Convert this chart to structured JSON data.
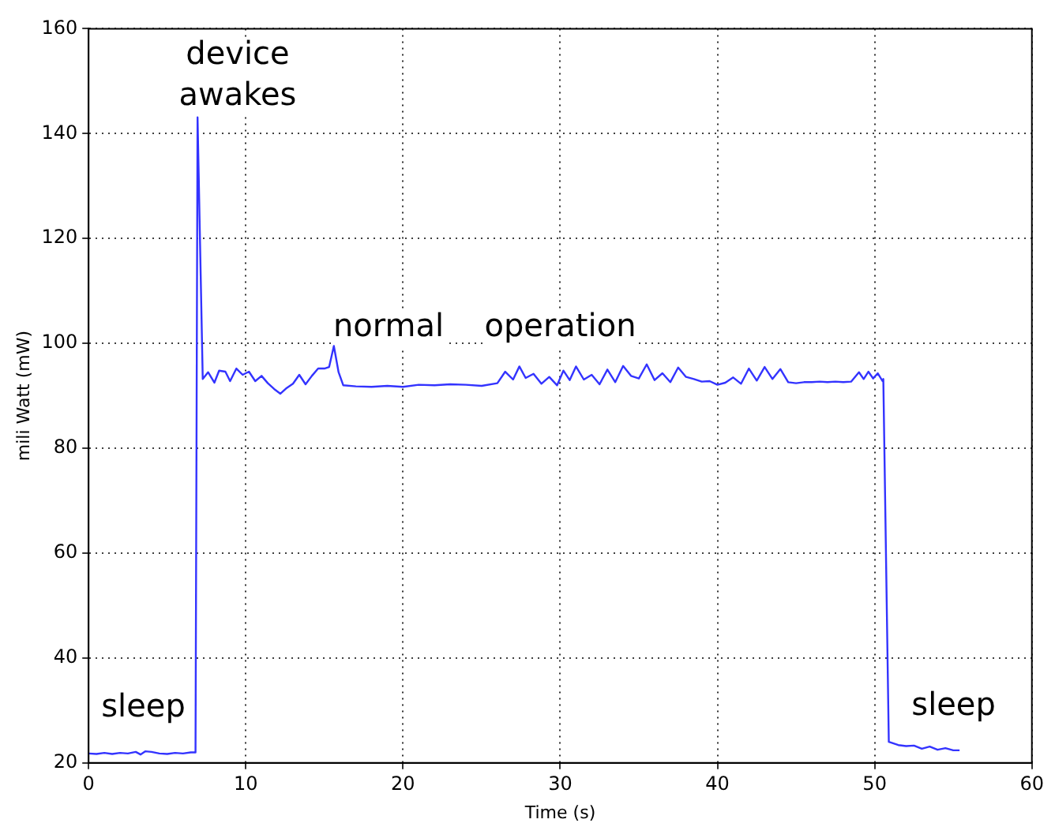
{
  "chart_data": {
    "type": "line",
    "xlabel": "Time (s)",
    "ylabel": "mili Watt (mW)",
    "xlim": [
      0,
      60
    ],
    "xticks": [
      0,
      10,
      20,
      30,
      40,
      50,
      60
    ],
    "ylim": [
      20,
      160
    ],
    "yticks": [
      20,
      40,
      60,
      80,
      100,
      120,
      140,
      160
    ],
    "grid": true,
    "marker": "none",
    "line_style": "solid",
    "legend": false,
    "series": [
      {
        "color": "#3333ff",
        "x": [
          0,
          0.5,
          1,
          1.5,
          2,
          2.5,
          3,
          3.3,
          3.6,
          4,
          4.5,
          5,
          5.5,
          6,
          6.5,
          6.8,
          6.93,
          7.26,
          7.6,
          8,
          8.3,
          8.7,
          9,
          9.4,
          9.8,
          10.2,
          10.6,
          11,
          11.4,
          11.8,
          12.2,
          12.6,
          13,
          13.4,
          13.8,
          14.2,
          14.6,
          15,
          15.3,
          15.6,
          15.9,
          16.2,
          17,
          18,
          19,
          20,
          21,
          22,
          23,
          24,
          25,
          26,
          26.5,
          27,
          27.4,
          27.8,
          28.3,
          28.8,
          29.3,
          29.8,
          30.2,
          30.6,
          31,
          31.5,
          32,
          32.5,
          33,
          33.5,
          34,
          34.5,
          35,
          35.5,
          36,
          36.5,
          37,
          37.5,
          38,
          38.5,
          39,
          39.5,
          40,
          40.5,
          41,
          41.5,
          42,
          42.5,
          43,
          43.5,
          44,
          44.5,
          45,
          45.5,
          46,
          46.5,
          47,
          47.5,
          48,
          48.5,
          49,
          49.3,
          49.6,
          49.9,
          50.2,
          50.5,
          50.55,
          50.9,
          51.5,
          52,
          52.5,
          53,
          53.5,
          54,
          54.5,
          55,
          55.4
        ],
        "values": [
          21.8,
          21.7,
          21.9,
          21.7,
          21.9,
          21.8,
          22.1,
          21.6,
          22.2,
          22.1,
          21.8,
          21.7,
          21.9,
          21.8,
          22.0,
          22.0,
          143.1,
          93.2,
          94.5,
          92.5,
          94.8,
          94.6,
          92.8,
          95.2,
          94.0,
          94.6,
          92.8,
          93.8,
          92.4,
          91.3,
          90.4,
          91.5,
          92.3,
          94.0,
          92.2,
          93.8,
          95.2,
          95.2,
          95.5,
          99.5,
          94.5,
          92.0,
          91.8,
          91.7,
          91.9,
          91.7,
          92.1,
          92.0,
          92.2,
          92.1,
          91.9,
          92.4,
          94.6,
          93.1,
          95.6,
          93.4,
          94.2,
          92.3,
          93.6,
          92.0,
          94.8,
          93.0,
          95.6,
          93.1,
          94.0,
          92.2,
          95.0,
          92.6,
          95.7,
          93.8,
          93.3,
          96.0,
          93.0,
          94.3,
          92.6,
          95.4,
          93.6,
          93.2,
          92.7,
          92.8,
          92.1,
          92.5,
          93.5,
          92.3,
          95.2,
          92.9,
          95.5,
          93.2,
          95.1,
          92.6,
          92.4,
          92.6,
          92.6,
          92.7,
          92.6,
          92.7,
          92.6,
          92.7,
          94.5,
          93.2,
          94.6,
          93.3,
          94.3,
          92.8,
          93.2,
          24.0,
          23.4,
          23.2,
          23.3,
          22.7,
          23.1,
          22.5,
          22.8,
          22.4,
          22.4
        ]
      }
    ],
    "annotations": [
      "device\nawakes",
      "normal",
      "operation",
      "sleep",
      "sleep"
    ]
  }
}
